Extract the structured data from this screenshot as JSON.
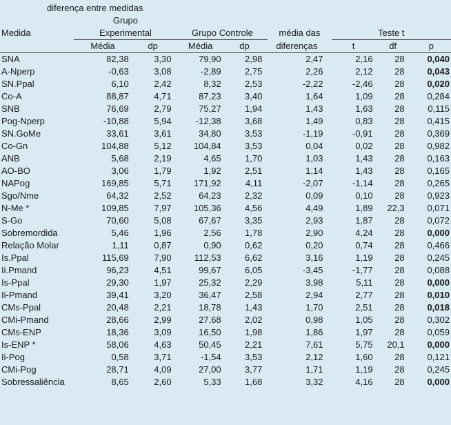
{
  "headers": {
    "main_title": "diferença entre medidas",
    "col1": "Medida",
    "group_exp": "Grupo",
    "group_exp2": "Experimental",
    "group_ctrl": "Grupo Controle",
    "mean_diff1": "média das",
    "mean_diff2": "diferenças",
    "ttest": "Teste t",
    "mean": "Média",
    "sd": "dp",
    "t": "t",
    "df": "df",
    "p": "p"
  },
  "rows": [
    {
      "m": "SNA",
      "me": "82,38",
      "de": "3,30",
      "mc": "79,90",
      "dc": "2,98",
      "diff": "2,47",
      "t": "2,16",
      "df": "28",
      "p": "0,040",
      "b": true
    },
    {
      "m": "A-Nperp",
      "me": "-0,63",
      "de": "3,08",
      "mc": "-2,89",
      "dc": "2,75",
      "diff": "2,26",
      "t": "2,12",
      "df": "28",
      "p": "0,043",
      "b": true
    },
    {
      "m": "SN.Ppal",
      "me": "6,10",
      "de": "2,42",
      "mc": "8,32",
      "dc": "2,53",
      "diff": "-2,22",
      "t": "-2,46",
      "df": "28",
      "p": "0,020",
      "b": true
    },
    {
      "m": "Co-A",
      "me": "88,87",
      "de": "4,71",
      "mc": "87,23",
      "dc": "3,40",
      "diff": "1,64",
      "t": "1,09",
      "df": "28",
      "p": "0,284",
      "b": false
    },
    {
      "m": "SNB",
      "me": "76,69",
      "de": "2,79",
      "mc": "75,27",
      "dc": "1,94",
      "diff": "1,43",
      "t": "1,63",
      "df": "28",
      "p": "0,115",
      "b": false
    },
    {
      "m": "Pog-Nperp",
      "me": "-10,88",
      "de": "5,94",
      "mc": "-12,38",
      "dc": "3,68",
      "diff": "1,49",
      "t": "0,83",
      "df": "28",
      "p": "0,415",
      "b": false
    },
    {
      "m": "SN.GoMe",
      "me": "33,61",
      "de": "3,61",
      "mc": "34,80",
      "dc": "3,53",
      "diff": "-1,19",
      "t": "-0,91",
      "df": "28",
      "p": "0,369",
      "b": false
    },
    {
      "m": "Co-Gn",
      "me": "104,88",
      "de": "5,12",
      "mc": "104,84",
      "dc": "3,53",
      "diff": "0,04",
      "t": "0,02",
      "df": "28",
      "p": "0,982",
      "b": false
    },
    {
      "m": "ANB",
      "me": "5,68",
      "de": "2,19",
      "mc": "4,65",
      "dc": "1,70",
      "diff": "1,03",
      "t": "1,43",
      "df": "28",
      "p": "0,163",
      "b": false
    },
    {
      "m": "AO-BO",
      "me": "3,06",
      "de": "1,79",
      "mc": "1,92",
      "dc": "2,51",
      "diff": "1,14",
      "t": "1,43",
      "df": "28",
      "p": "0,165",
      "b": false
    },
    {
      "m": "NAPog",
      "me": "169,85",
      "de": "5,71",
      "mc": "171,92",
      "dc": "4,11",
      "diff": "-2,07",
      "t": "-1,14",
      "df": "28",
      "p": "0,265",
      "b": false
    },
    {
      "m": "Sgo/Nme",
      "me": "64,32",
      "de": "2,52",
      "mc": "64,23",
      "dc": "2,32",
      "diff": "0,09",
      "t": "0,10",
      "df": "28",
      "p": "0,923",
      "b": false
    },
    {
      "m": "N-Me *",
      "me": "109,85",
      "de": "7,97",
      "mc": "105,36",
      "dc": "4,56",
      "diff": "4,49",
      "t": "1,89",
      "df": "22,3",
      "p": "0,071",
      "b": false
    },
    {
      "m": "S-Go",
      "me": "70,60",
      "de": "5,08",
      "mc": "67,67",
      "dc": "3,35",
      "diff": "2,93",
      "t": "1,87",
      "df": "28",
      "p": "0,072",
      "b": false
    },
    {
      "m": "Sobremordida",
      "me": "5,46",
      "de": "1,96",
      "mc": "2,56",
      "dc": "1,78",
      "diff": "2,90",
      "t": "4,24",
      "df": "28",
      "p": "0,000",
      "b": true
    },
    {
      "m": "Relação Molar",
      "me": "1,11",
      "de": "0,87",
      "mc": "0,90",
      "dc": "0,62",
      "diff": "0,20",
      "t": "0,74",
      "df": "28",
      "p": "0,466",
      "b": false
    },
    {
      "m": "Is.Ppal",
      "me": "115,69",
      "de": "7,90",
      "mc": "112,53",
      "dc": "6,62",
      "diff": "3,16",
      "t": "1,19",
      "df": "28",
      "p": "0,245",
      "b": false
    },
    {
      "m": "Ii.Pmand",
      "me": "96,23",
      "de": "4,51",
      "mc": "99,67",
      "dc": "6,05",
      "diff": "-3,45",
      "t": "-1,77",
      "df": "28",
      "p": "0,088",
      "b": false
    },
    {
      "m": "Is-Ppal",
      "me": "29,30",
      "de": "1,97",
      "mc": "25,32",
      "dc": "2,29",
      "diff": "3,98",
      "t": "5,11",
      "df": "28",
      "p": "0,000",
      "b": true
    },
    {
      "m": "Ii-Pmand",
      "me": "39,41",
      "de": "3,20",
      "mc": "36,47",
      "dc": "2,58",
      "diff": "2,94",
      "t": "2,77",
      "df": "28",
      "p": "0,010",
      "b": true
    },
    {
      "m": "CMs-Ppal",
      "me": "20,48",
      "de": "2,21",
      "mc": "18,78",
      "dc": "1,43",
      "diff": "1,70",
      "t": "2,51",
      "df": "28",
      "p": "0,018",
      "b": true
    },
    {
      "m": "CMi-Pmand",
      "me": "28,66",
      "de": "2,99",
      "mc": "27,68",
      "dc": "2,02",
      "diff": "0,98",
      "t": "1,05",
      "df": "28",
      "p": "0,302",
      "b": false
    },
    {
      "m": "CMs-ENP",
      "me": "18,36",
      "de": "3,09",
      "mc": "16,50",
      "dc": "1,98",
      "diff": "1,86",
      "t": "1,97",
      "df": "28",
      "p": "0,059",
      "b": false
    },
    {
      "m": "Is-ENP *",
      "me": "58,06",
      "de": "4,63",
      "mc": "50,45",
      "dc": "2,21",
      "diff": "7,61",
      "t": "5,75",
      "df": "20,1",
      "p": "0,000",
      "b": true
    },
    {
      "m": "Ii-Pog",
      "me": "0,58",
      "de": "3,71",
      "mc": "-1,54",
      "dc": "3,53",
      "diff": "2,12",
      "t": "1,60",
      "df": "28",
      "p": "0,121",
      "b": false
    },
    {
      "m": "CMi-Pog",
      "me": "28,71",
      "de": "4,09",
      "mc": "27,00",
      "dc": "3,77",
      "diff": "1,71",
      "t": "1,19",
      "df": "28",
      "p": "0,245",
      "b": false
    },
    {
      "m": "Sobressaliência",
      "me": "8,65",
      "de": "2,60",
      "mc": "5,33",
      "dc": "1,68",
      "diff": "3,32",
      "t": "4,16",
      "df": "28",
      "p": "0,000",
      "b": true
    }
  ]
}
